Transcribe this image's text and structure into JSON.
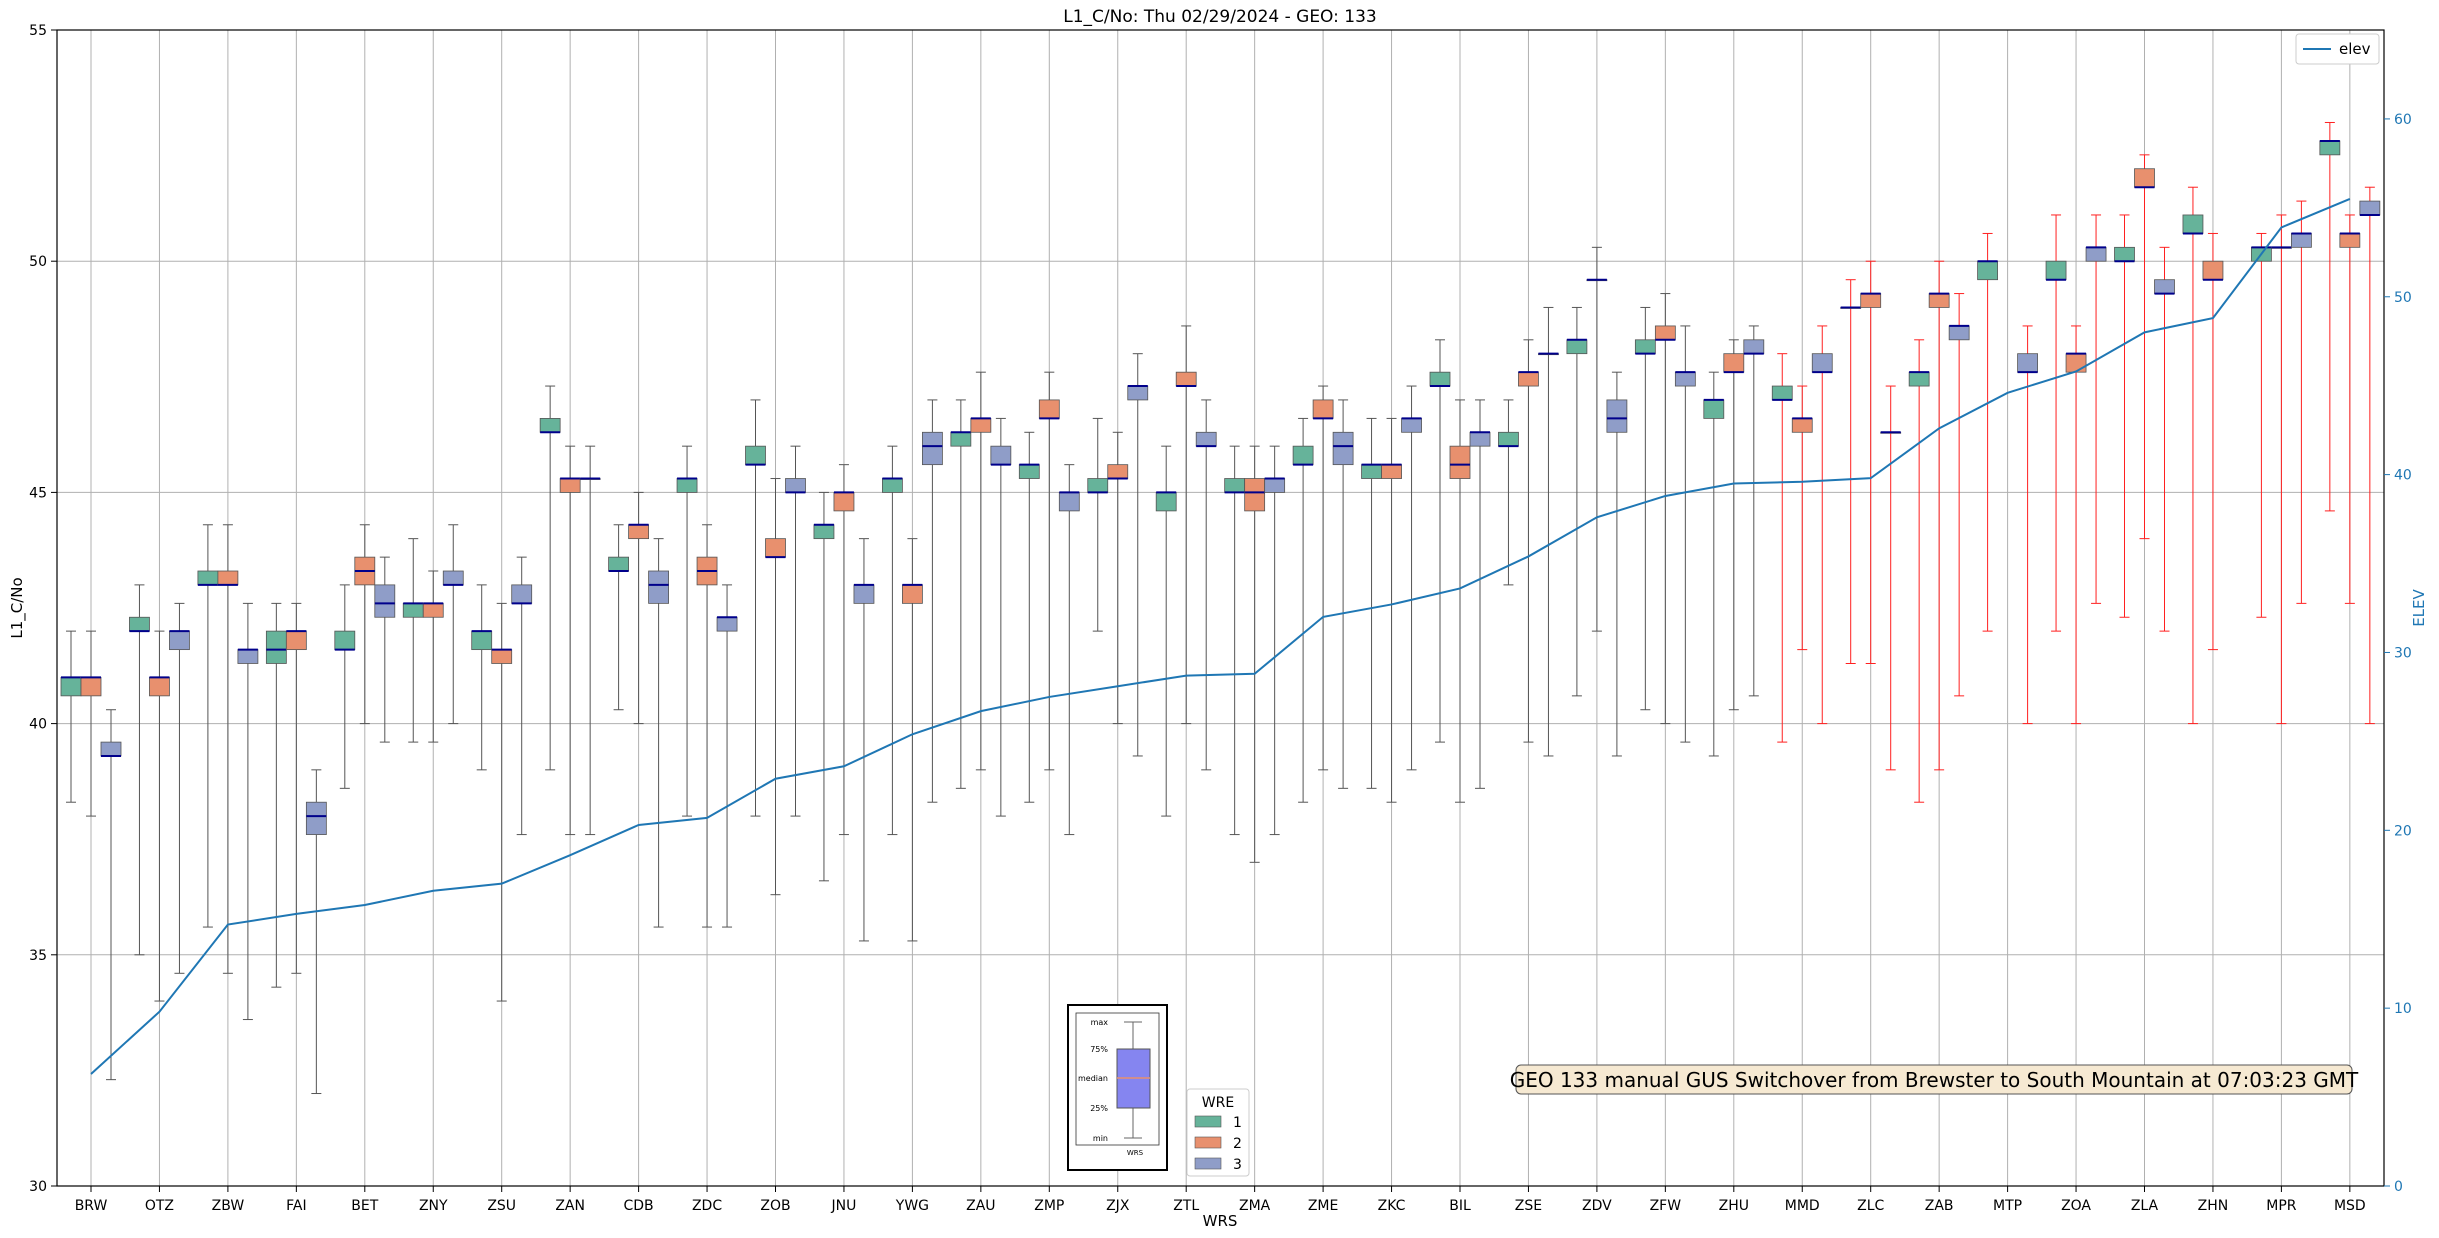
{
  "chart_data": {
    "type": "box",
    "title": "L1_C/No: Thu 02/29/2024 - GEO: 133",
    "xlabel": "WRS",
    "ylabel": "L1_C/No",
    "ylabel_right": "ELEV",
    "ylim": [
      30,
      55
    ],
    "ylim_right": [
      0,
      65
    ],
    "yticks": [
      30,
      35,
      40,
      45,
      50,
      55
    ],
    "yticks_right": [
      0,
      10,
      20,
      30,
      40,
      50,
      60
    ],
    "grid": true,
    "categories": [
      "BRW",
      "OTZ",
      "ZBW",
      "FAI",
      "BET",
      "ZNY",
      "ZSU",
      "ZAN",
      "CDB",
      "ZDC",
      "ZOB",
      "JNU",
      "YWG",
      "ZAU",
      "ZMP",
      "ZJX",
      "ZTL",
      "ZMA",
      "ZME",
      "ZKC",
      "BIL",
      "ZSE",
      "ZDV",
      "ZFW",
      "ZHU",
      "MMD",
      "ZLC",
      "ZAB",
      "MTP",
      "ZOA",
      "ZLA",
      "ZHN",
      "MPR",
      "MSD"
    ],
    "wre_colors": {
      "1": "#66b39a",
      "2": "#e8906e",
      "3": "#8f9dc8"
    },
    "boxes": [
      {
        "cat": "BRW",
        "wre": 1,
        "min": 38.3,
        "q1": 40.6,
        "median": 41.0,
        "q3": 41.0,
        "max": 42.0
      },
      {
        "cat": "BRW",
        "wre": 2,
        "min": 38.0,
        "q1": 40.6,
        "median": 41.0,
        "q3": 41.0,
        "max": 42.0
      },
      {
        "cat": "BRW",
        "wre": 3,
        "min": 32.3,
        "q1": 39.3,
        "median": 39.3,
        "q3": 39.6,
        "max": 40.3
      },
      {
        "cat": "OTZ",
        "wre": 1,
        "min": 35.0,
        "q1": 42.0,
        "median": 42.0,
        "q3": 42.3,
        "max": 43.0
      },
      {
        "cat": "OTZ",
        "wre": 2,
        "min": 34.0,
        "q1": 40.6,
        "median": 41.0,
        "q3": 41.0,
        "max": 42.0
      },
      {
        "cat": "OTZ",
        "wre": 3,
        "min": 34.6,
        "q1": 41.6,
        "median": 42.0,
        "q3": 42.0,
        "max": 42.6
      },
      {
        "cat": "ZBW",
        "wre": 1,
        "min": 35.6,
        "q1": 43.0,
        "median": 43.0,
        "q3": 43.3,
        "max": 44.3
      },
      {
        "cat": "ZBW",
        "wre": 2,
        "min": 34.6,
        "q1": 43.0,
        "median": 43.0,
        "q3": 43.3,
        "max": 44.3
      },
      {
        "cat": "ZBW",
        "wre": 3,
        "min": 33.6,
        "q1": 41.3,
        "median": 41.6,
        "q3": 41.6,
        "max": 42.6
      },
      {
        "cat": "FAI",
        "wre": 1,
        "min": 34.3,
        "q1": 41.3,
        "median": 41.6,
        "q3": 42.0,
        "max": 42.6
      },
      {
        "cat": "FAI",
        "wre": 2,
        "min": 34.6,
        "q1": 41.6,
        "median": 42.0,
        "q3": 42.0,
        "max": 42.6
      },
      {
        "cat": "FAI",
        "wre": 3,
        "min": 32.0,
        "q1": 37.6,
        "median": 38.0,
        "q3": 38.3,
        "max": 39.0
      },
      {
        "cat": "BET",
        "wre": 1,
        "min": 38.6,
        "q1": 41.6,
        "median": 41.6,
        "q3": 42.0,
        "max": 43.0
      },
      {
        "cat": "BET",
        "wre": 2,
        "min": 40.0,
        "q1": 43.0,
        "median": 43.3,
        "q3": 43.6,
        "max": 44.3
      },
      {
        "cat": "BET",
        "wre": 3,
        "min": 39.6,
        "q1": 42.3,
        "median": 42.6,
        "q3": 43.0,
        "max": 43.6
      },
      {
        "cat": "ZNY",
        "wre": 1,
        "min": 39.6,
        "q1": 42.3,
        "median": 42.6,
        "q3": 42.6,
        "max": 44.0
      },
      {
        "cat": "ZNY",
        "wre": 2,
        "min": 39.6,
        "q1": 42.3,
        "median": 42.6,
        "q3": 42.6,
        "max": 43.3
      },
      {
        "cat": "ZNY",
        "wre": 3,
        "min": 40.0,
        "q1": 43.0,
        "median": 43.0,
        "q3": 43.3,
        "max": 44.3
      },
      {
        "cat": "ZSU",
        "wre": 1,
        "min": 39.0,
        "q1": 41.6,
        "median": 42.0,
        "q3": 42.0,
        "max": 43.0
      },
      {
        "cat": "ZSU",
        "wre": 2,
        "min": 34.0,
        "q1": 41.3,
        "median": 41.6,
        "q3": 41.6,
        "max": 42.6
      },
      {
        "cat": "ZSU",
        "wre": 3,
        "min": 37.6,
        "q1": 42.6,
        "median": 42.6,
        "q3": 43.0,
        "max": 43.6
      },
      {
        "cat": "ZAN",
        "wre": 1,
        "min": 39.0,
        "q1": 46.3,
        "median": 46.3,
        "q3": 46.6,
        "max": 47.3
      },
      {
        "cat": "ZAN",
        "wre": 2,
        "min": 37.6,
        "q1": 45.0,
        "median": 45.3,
        "q3": 45.3,
        "max": 46.0
      },
      {
        "cat": "ZAN",
        "wre": 3,
        "min": 37.6,
        "q1": 45.3,
        "median": 45.3,
        "q3": 45.3,
        "max": 46.0
      },
      {
        "cat": "CDB",
        "wre": 1,
        "min": 40.3,
        "q1": 43.3,
        "median": 43.3,
        "q3": 43.6,
        "max": 44.3
      },
      {
        "cat": "CDB",
        "wre": 2,
        "min": 40.0,
        "q1": 44.0,
        "median": 44.3,
        "q3": 44.3,
        "max": 45.0
      },
      {
        "cat": "CDB",
        "wre": 3,
        "min": 35.6,
        "q1": 42.6,
        "median": 43.0,
        "q3": 43.3,
        "max": 44.0
      },
      {
        "cat": "ZDC",
        "wre": 1,
        "min": 38.0,
        "q1": 45.0,
        "median": 45.3,
        "q3": 45.3,
        "max": 46.0
      },
      {
        "cat": "ZDC",
        "wre": 2,
        "min": 35.6,
        "q1": 43.0,
        "median": 43.3,
        "q3": 43.6,
        "max": 44.3
      },
      {
        "cat": "ZDC",
        "wre": 3,
        "min": 35.6,
        "q1": 42.0,
        "median": 42.3,
        "q3": 42.3,
        "max": 43.0
      },
      {
        "cat": "ZOB",
        "wre": 1,
        "min": 38.0,
        "q1": 45.6,
        "median": 45.6,
        "q3": 46.0,
        "max": 47.0
      },
      {
        "cat": "ZOB",
        "wre": 2,
        "min": 36.3,
        "q1": 43.6,
        "median": 43.6,
        "q3": 44.0,
        "max": 45.3
      },
      {
        "cat": "ZOB",
        "wre": 3,
        "min": 38.0,
        "q1": 45.0,
        "median": 45.0,
        "q3": 45.3,
        "max": 46.0
      },
      {
        "cat": "JNU",
        "wre": 1,
        "min": 36.6,
        "q1": 44.0,
        "median": 44.3,
        "q3": 44.3,
        "max": 45.0
      },
      {
        "cat": "JNU",
        "wre": 2,
        "min": 37.6,
        "q1": 44.6,
        "median": 45.0,
        "q3": 45.0,
        "max": 45.6
      },
      {
        "cat": "JNU",
        "wre": 3,
        "min": 35.3,
        "q1": 42.6,
        "median": 43.0,
        "q3": 43.0,
        "max": 44.0
      },
      {
        "cat": "YWG",
        "wre": 1,
        "min": 37.6,
        "q1": 45.0,
        "median": 45.3,
        "q3": 45.3,
        "max": 46.0
      },
      {
        "cat": "YWG",
        "wre": 2,
        "min": 35.3,
        "q1": 42.6,
        "median": 43.0,
        "q3": 43.0,
        "max": 44.0
      },
      {
        "cat": "YWG",
        "wre": 3,
        "min": 38.3,
        "q1": 45.6,
        "median": 46.0,
        "q3": 46.3,
        "max": 47.0
      },
      {
        "cat": "ZAU",
        "wre": 1,
        "min": 38.6,
        "q1": 46.0,
        "median": 46.3,
        "q3": 46.3,
        "max": 47.0
      },
      {
        "cat": "ZAU",
        "wre": 2,
        "min": 39.0,
        "q1": 46.3,
        "median": 46.6,
        "q3": 46.6,
        "max": 47.6
      },
      {
        "cat": "ZAU",
        "wre": 3,
        "min": 38.0,
        "q1": 45.6,
        "median": 45.6,
        "q3": 46.0,
        "max": 46.6
      },
      {
        "cat": "ZMP",
        "wre": 1,
        "min": 38.3,
        "q1": 45.3,
        "median": 45.6,
        "q3": 45.6,
        "max": 46.3
      },
      {
        "cat": "ZMP",
        "wre": 2,
        "min": 39.0,
        "q1": 46.6,
        "median": 46.6,
        "q3": 47.0,
        "max": 47.6
      },
      {
        "cat": "ZMP",
        "wre": 3,
        "min": 37.6,
        "q1": 44.6,
        "median": 45.0,
        "q3": 45.0,
        "max": 45.6
      },
      {
        "cat": "ZJX",
        "wre": 1,
        "min": 42.0,
        "q1": 45.0,
        "median": 45.0,
        "q3": 45.3,
        "max": 46.6
      },
      {
        "cat": "ZJX",
        "wre": 2,
        "min": 40.0,
        "q1": 45.3,
        "median": 45.3,
        "q3": 45.6,
        "max": 46.3
      },
      {
        "cat": "ZJX",
        "wre": 3,
        "min": 39.3,
        "q1": 47.0,
        "median": 47.3,
        "q3": 47.3,
        "max": 48.0
      },
      {
        "cat": "ZTL",
        "wre": 1,
        "min": 38.0,
        "q1": 44.6,
        "median": 45.0,
        "q3": 45.0,
        "max": 46.0
      },
      {
        "cat": "ZTL",
        "wre": 2,
        "min": 40.0,
        "q1": 47.3,
        "median": 47.3,
        "q3": 47.6,
        "max": 48.6
      },
      {
        "cat": "ZTL",
        "wre": 3,
        "min": 39.0,
        "q1": 46.0,
        "median": 46.0,
        "q3": 46.3,
        "max": 47.0
      },
      {
        "cat": "ZMA",
        "wre": 1,
        "min": 37.6,
        "q1": 45.0,
        "median": 45.0,
        "q3": 45.3,
        "max": 46.0
      },
      {
        "cat": "ZMA",
        "wre": 2,
        "min": 37.0,
        "q1": 44.6,
        "median": 45.0,
        "q3": 45.3,
        "max": 46.0
      },
      {
        "cat": "ZMA",
        "wre": 3,
        "min": 37.6,
        "q1": 45.0,
        "median": 45.3,
        "q3": 45.3,
        "max": 46.0
      },
      {
        "cat": "ZME",
        "wre": 1,
        "min": 38.3,
        "q1": 45.6,
        "median": 45.6,
        "q3": 46.0,
        "max": 46.6
      },
      {
        "cat": "ZME",
        "wre": 2,
        "min": 39.0,
        "q1": 46.6,
        "median": 46.6,
        "q3": 47.0,
        "max": 47.3
      },
      {
        "cat": "ZME",
        "wre": 3,
        "min": 38.6,
        "q1": 45.6,
        "median": 46.0,
        "q3": 46.3,
        "max": 47.0
      },
      {
        "cat": "ZKC",
        "wre": 1,
        "min": 38.6,
        "q1": 45.3,
        "median": 45.6,
        "q3": 45.6,
        "max": 46.6
      },
      {
        "cat": "ZKC",
        "wre": 2,
        "min": 38.3,
        "q1": 45.3,
        "median": 45.6,
        "q3": 45.6,
        "max": 46.6
      },
      {
        "cat": "ZKC",
        "wre": 3,
        "min": 39.0,
        "q1": 46.3,
        "median": 46.6,
        "q3": 46.6,
        "max": 47.3
      },
      {
        "cat": "BIL",
        "wre": 1,
        "min": 39.6,
        "q1": 47.3,
        "median": 47.3,
        "q3": 47.6,
        "max": 48.3
      },
      {
        "cat": "BIL",
        "wre": 2,
        "min": 38.3,
        "q1": 45.3,
        "median": 45.6,
        "q3": 46.0,
        "max": 47.0
      },
      {
        "cat": "BIL",
        "wre": 3,
        "min": 38.6,
        "q1": 46.0,
        "median": 46.3,
        "q3": 46.3,
        "max": 47.0
      },
      {
        "cat": "ZSE",
        "wre": 1,
        "min": 43.0,
        "q1": 46.0,
        "median": 46.0,
        "q3": 46.3,
        "max": 47.0
      },
      {
        "cat": "ZSE",
        "wre": 2,
        "min": 39.6,
        "q1": 47.3,
        "median": 47.6,
        "q3": 47.6,
        "max": 48.3
      },
      {
        "cat": "ZSE",
        "wre": 3,
        "min": 39.3,
        "q1": 48.0,
        "median": 48.0,
        "q3": 48.0,
        "max": 49.0
      },
      {
        "cat": "ZDV",
        "wre": 1,
        "min": 40.6,
        "q1": 48.0,
        "median": 48.3,
        "q3": 48.3,
        "max": 49.0
      },
      {
        "cat": "ZDV",
        "wre": 2,
        "min": 42.0,
        "q1": 49.6,
        "median": 49.6,
        "q3": 49.6,
        "max": 50.3
      },
      {
        "cat": "ZDV",
        "wre": 3,
        "min": 39.3,
        "q1": 46.3,
        "median": 46.6,
        "q3": 47.0,
        "max": 47.6
      },
      {
        "cat": "ZFW",
        "wre": 1,
        "min": 40.3,
        "q1": 48.0,
        "median": 48.0,
        "q3": 48.3,
        "max": 49.0
      },
      {
        "cat": "ZFW",
        "wre": 2,
        "min": 40.0,
        "q1": 48.3,
        "median": 48.3,
        "q3": 48.6,
        "max": 49.3
      },
      {
        "cat": "ZFW",
        "wre": 3,
        "min": 39.6,
        "q1": 47.3,
        "median": 47.6,
        "q3": 47.6,
        "max": 48.6
      },
      {
        "cat": "ZHU",
        "wre": 1,
        "min": 39.3,
        "q1": 46.6,
        "median": 47.0,
        "q3": 47.0,
        "max": 47.6
      },
      {
        "cat": "ZHU",
        "wre": 2,
        "min": 40.3,
        "q1": 47.6,
        "median": 47.6,
        "q3": 48.0,
        "max": 48.3
      },
      {
        "cat": "ZHU",
        "wre": 3,
        "min": 40.6,
        "q1": 48.0,
        "median": 48.0,
        "q3": 48.3,
        "max": 48.6
      },
      {
        "cat": "MMD",
        "wre": 1,
        "min": 39.6,
        "q1": 47.0,
        "median": 47.0,
        "q3": 47.3,
        "max": 48.0
      },
      {
        "cat": "MMD",
        "wre": 2,
        "min": 41.6,
        "q1": 46.3,
        "median": 46.6,
        "q3": 46.6,
        "max": 47.3
      },
      {
        "cat": "MMD",
        "wre": 3,
        "min": 40.0,
        "q1": 47.6,
        "median": 47.6,
        "q3": 48.0,
        "max": 48.6
      },
      {
        "cat": "ZLC",
        "wre": 1,
        "min": 41.3,
        "q1": 49.0,
        "median": 49.0,
        "q3": 49.0,
        "max": 49.6
      },
      {
        "cat": "ZLC",
        "wre": 2,
        "min": 41.3,
        "q1": 49.0,
        "median": 49.3,
        "q3": 49.3,
        "max": 50.0
      },
      {
        "cat": "ZLC",
        "wre": 3,
        "min": 39.0,
        "q1": 46.3,
        "median": 46.3,
        "q3": 46.3,
        "max": 47.3
      },
      {
        "cat": "ZAB",
        "wre": 1,
        "min": 38.3,
        "q1": 47.3,
        "median": 47.6,
        "q3": 47.6,
        "max": 48.3
      },
      {
        "cat": "ZAB",
        "wre": 2,
        "min": 39.0,
        "q1": 49.0,
        "median": 49.3,
        "q3": 49.3,
        "max": 50.0
      },
      {
        "cat": "ZAB",
        "wre": 3,
        "min": 40.6,
        "q1": 48.3,
        "median": 48.6,
        "q3": 48.6,
        "max": 49.3
      },
      {
        "cat": "MTP",
        "wre": 1,
        "min": 42.0,
        "q1": 49.6,
        "median": 50.0,
        "q3": 50.0,
        "max": 50.6
      },
      {
        "cat": "MTP",
        "wre": 3,
        "min": 40.0,
        "q1": 47.6,
        "median": 47.6,
        "q3": 48.0,
        "max": 48.6
      },
      {
        "cat": "ZOA",
        "wre": 1,
        "min": 42.0,
        "q1": 49.6,
        "median": 49.6,
        "q3": 50.0,
        "max": 51.0
      },
      {
        "cat": "ZOA",
        "wre": 2,
        "min": 40.0,
        "q1": 47.6,
        "median": 48.0,
        "q3": 48.0,
        "max": 48.6
      },
      {
        "cat": "ZOA",
        "wre": 3,
        "min": 42.6,
        "q1": 50.0,
        "median": 50.3,
        "q3": 50.3,
        "max": 51.0
      },
      {
        "cat": "ZLA",
        "wre": 1,
        "min": 42.3,
        "q1": 50.0,
        "median": 50.0,
        "q3": 50.3,
        "max": 51.0
      },
      {
        "cat": "ZLA",
        "wre": 2,
        "min": 44.0,
        "q1": 51.6,
        "median": 51.6,
        "q3": 52.0,
        "max": 52.3
      },
      {
        "cat": "ZLA",
        "wre": 3,
        "min": 42.0,
        "q1": 49.3,
        "median": 49.3,
        "q3": 49.6,
        "max": 50.3
      },
      {
        "cat": "ZHN",
        "wre": 1,
        "min": 40.0,
        "q1": 50.6,
        "median": 50.6,
        "q3": 51.0,
        "max": 51.6
      },
      {
        "cat": "ZHN",
        "wre": 2,
        "min": 41.6,
        "q1": 49.6,
        "median": 49.6,
        "q3": 50.0,
        "max": 50.6
      },
      {
        "cat": "MPR",
        "wre": 1,
        "min": 42.3,
        "q1": 50.0,
        "median": 50.3,
        "q3": 50.3,
        "max": 50.6
      },
      {
        "cat": "MPR",
        "wre": 2,
        "min": 40.0,
        "q1": 50.3,
        "median": 50.3,
        "q3": 50.3,
        "max": 51.0
      },
      {
        "cat": "MPR",
        "wre": 3,
        "min": 42.6,
        "q1": 50.3,
        "median": 50.6,
        "q3": 50.6,
        "max": 51.3
      },
      {
        "cat": "MSD",
        "wre": 1,
        "min": 44.6,
        "q1": 52.3,
        "median": 52.6,
        "q3": 52.6,
        "max": 53.0
      },
      {
        "cat": "MSD",
        "wre": 2,
        "min": 42.6,
        "q1": 50.3,
        "median": 50.6,
        "q3": 50.6,
        "max": 51.0
      },
      {
        "cat": "MSD",
        "wre": 3,
        "min": 40.0,
        "q1": 51.0,
        "median": 51.0,
        "q3": 51.3,
        "max": 51.6
      }
    ],
    "red_whisker_categories": [
      "MMD",
      "ZLC",
      "ZAB",
      "MTP",
      "ZOA",
      "ZLA",
      "ZHN",
      "MPR",
      "MSD"
    ],
    "series": [
      {
        "name": "elev",
        "axis": "right",
        "color": "#1f77b4",
        "values": [
          6.3,
          9.8,
          14.7,
          15.3,
          15.8,
          16.6,
          17.0,
          18.6,
          20.3,
          20.7,
          22.9,
          23.6,
          25.4,
          26.7,
          27.5,
          28.1,
          28.7,
          28.8,
          32.0,
          32.7,
          33.6,
          35.4,
          37.6,
          38.8,
          39.5,
          39.6,
          39.8,
          42.6,
          44.6,
          45.8,
          48.0,
          48.8,
          53.9,
          55.5
        ]
      }
    ],
    "legend": {
      "position": "upper-right",
      "entries": [
        "elev"
      ]
    },
    "wre_legend": {
      "title": "WRE",
      "entries": [
        "1",
        "2",
        "3"
      ]
    },
    "inset": {
      "labels": [
        "max",
        "75%",
        "median",
        "25%",
        "min"
      ],
      "xlabel": "WRS"
    },
    "annotation": "GEO 133 manual GUS Switchover from Brewster to South Mountain at 07:03:23 GMT"
  }
}
